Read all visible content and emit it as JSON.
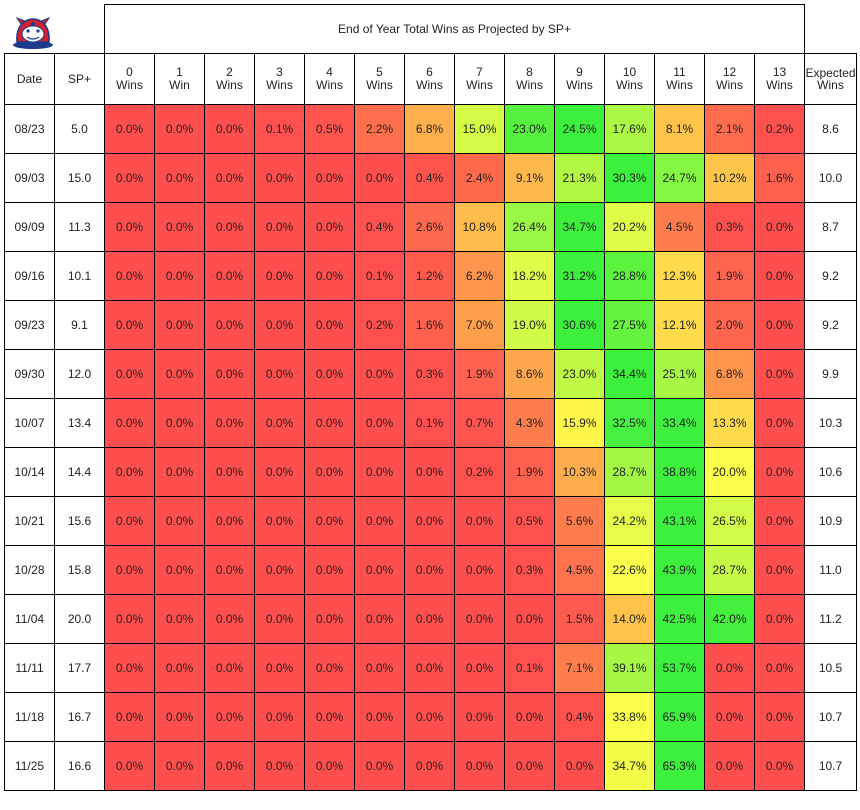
{
  "chart_data": {
    "type": "table",
    "title": "End of Year Total Wins as Projected by SP+",
    "headers": {
      "date": "Date",
      "sp": "SP+",
      "wins": [
        [
          "0",
          "Wins"
        ],
        [
          "1",
          "Win"
        ],
        [
          "2",
          "Wins"
        ],
        [
          "3",
          "Wins"
        ],
        [
          "4",
          "Wins"
        ],
        [
          "5",
          "Wins"
        ],
        [
          "6",
          "Wins"
        ],
        [
          "7",
          "Wins"
        ],
        [
          "8",
          "Wins"
        ],
        [
          "9",
          "Wins"
        ],
        [
          "10",
          "Wins"
        ],
        [
          "11",
          "Wins"
        ],
        [
          "12",
          "Wins"
        ],
        [
          "13",
          "Wins"
        ]
      ],
      "expected": [
        "Expected",
        "Wins"
      ]
    },
    "rows": [
      {
        "date": "08/23",
        "sp": "5.0",
        "values": [
          "0.0%",
          "0.0%",
          "0.0%",
          "0.1%",
          "0.5%",
          "2.2%",
          "6.8%",
          "15.0%",
          "23.0%",
          "24.5%",
          "17.6%",
          "8.1%",
          "2.1%",
          "0.2%"
        ],
        "expected": "8.6"
      },
      {
        "date": "09/03",
        "sp": "15.0",
        "values": [
          "0.0%",
          "0.0%",
          "0.0%",
          "0.0%",
          "0.0%",
          "0.0%",
          "0.4%",
          "2.4%",
          "9.1%",
          "21.3%",
          "30.3%",
          "24.7%",
          "10.2%",
          "1.6%"
        ],
        "expected": "10.0"
      },
      {
        "date": "09/09",
        "sp": "11.3",
        "values": [
          "0.0%",
          "0.0%",
          "0.0%",
          "0.0%",
          "0.0%",
          "0.4%",
          "2.6%",
          "10.8%",
          "26.4%",
          "34.7%",
          "20.2%",
          "4.5%",
          "0.3%",
          "0.0%"
        ],
        "expected": "8.7"
      },
      {
        "date": "09/16",
        "sp": "10.1",
        "values": [
          "0.0%",
          "0.0%",
          "0.0%",
          "0.0%",
          "0.0%",
          "0.1%",
          "1.2%",
          "6.2%",
          "18.2%",
          "31.2%",
          "28.8%",
          "12.3%",
          "1.9%",
          "0.0%"
        ],
        "expected": "9.2"
      },
      {
        "date": "09/23",
        "sp": "9.1",
        "values": [
          "0.0%",
          "0.0%",
          "0.0%",
          "0.0%",
          "0.0%",
          "0.2%",
          "1.6%",
          "7.0%",
          "19.0%",
          "30.6%",
          "27.5%",
          "12.1%",
          "2.0%",
          "0.0%"
        ],
        "expected": "9.2"
      },
      {
        "date": "09/30",
        "sp": "12.0",
        "values": [
          "0.0%",
          "0.0%",
          "0.0%",
          "0.0%",
          "0.0%",
          "0.0%",
          "0.3%",
          "1.9%",
          "8.6%",
          "23.0%",
          "34.4%",
          "25.1%",
          "6.8%",
          "0.0%"
        ],
        "expected": "9.9"
      },
      {
        "date": "10/07",
        "sp": "13.4",
        "values": [
          "0.0%",
          "0.0%",
          "0.0%",
          "0.0%",
          "0.0%",
          "0.0%",
          "0.1%",
          "0.7%",
          "4.3%",
          "15.9%",
          "32.5%",
          "33.4%",
          "13.3%",
          "0.0%"
        ],
        "expected": "10.3"
      },
      {
        "date": "10/14",
        "sp": "14.4",
        "values": [
          "0.0%",
          "0.0%",
          "0.0%",
          "0.0%",
          "0.0%",
          "0.0%",
          "0.0%",
          "0.2%",
          "1.9%",
          "10.3%",
          "28.7%",
          "38.8%",
          "20.0%",
          "0.0%"
        ],
        "expected": "10.6"
      },
      {
        "date": "10/21",
        "sp": "15.6",
        "values": [
          "0.0%",
          "0.0%",
          "0.0%",
          "0.0%",
          "0.0%",
          "0.0%",
          "0.0%",
          "0.0%",
          "0.5%",
          "5.6%",
          "24.2%",
          "43.1%",
          "26.5%",
          "0.0%"
        ],
        "expected": "10.9"
      },
      {
        "date": "10/28",
        "sp": "15.8",
        "values": [
          "0.0%",
          "0.0%",
          "0.0%",
          "0.0%",
          "0.0%",
          "0.0%",
          "0.0%",
          "0.0%",
          "0.3%",
          "4.5%",
          "22.6%",
          "43.9%",
          "28.7%",
          "0.0%"
        ],
        "expected": "11.0"
      },
      {
        "date": "11/04",
        "sp": "20.0",
        "values": [
          "0.0%",
          "0.0%",
          "0.0%",
          "0.0%",
          "0.0%",
          "0.0%",
          "0.0%",
          "0.0%",
          "0.0%",
          "1.5%",
          "14.0%",
          "42.5%",
          "42.0%",
          "0.0%"
        ],
        "expected": "11.2"
      },
      {
        "date": "11/11",
        "sp": "17.7",
        "values": [
          "0.0%",
          "0.0%",
          "0.0%",
          "0.0%",
          "0.0%",
          "0.0%",
          "0.0%",
          "0.0%",
          "0.1%",
          "7.1%",
          "39.1%",
          "53.7%",
          "0.0%",
          "0.0%"
        ],
        "expected": "10.5"
      },
      {
        "date": "11/18",
        "sp": "16.7",
        "values": [
          "0.0%",
          "0.0%",
          "0.0%",
          "0.0%",
          "0.0%",
          "0.0%",
          "0.0%",
          "0.0%",
          "0.0%",
          "0.4%",
          "33.8%",
          "65.9%",
          "0.0%",
          "0.0%"
        ],
        "expected": "10.7"
      },
      {
        "date": "11/25",
        "sp": "16.6",
        "values": [
          "0.0%",
          "0.0%",
          "0.0%",
          "0.0%",
          "0.0%",
          "0.0%",
          "0.0%",
          "0.0%",
          "0.0%",
          "0.0%",
          "34.7%",
          "65.3%",
          "0.0%",
          "0.0%"
        ],
        "expected": "10.7"
      }
    ],
    "color_scale": {
      "low": "#ff4e4e",
      "mid": "#ffff4a",
      "high": "#3ef03e"
    }
  },
  "logo_icon": "bulldog-logo-icon"
}
